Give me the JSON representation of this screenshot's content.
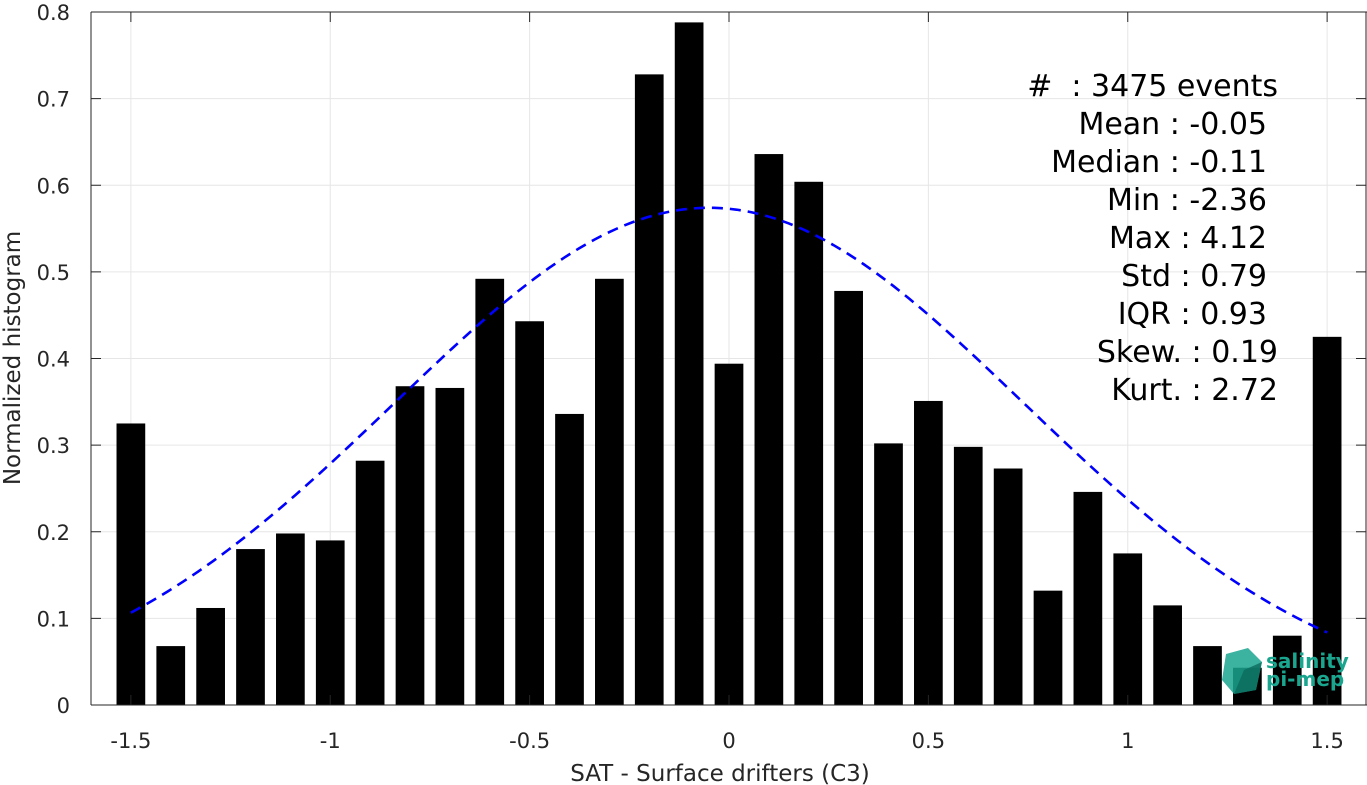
{
  "chart_data": {
    "type": "bar",
    "xlabel": "SAT - Surface drifters (C3)",
    "ylabel": "Normalized histogram",
    "xlim": [
      -1.6,
      1.6
    ],
    "ylim": [
      0,
      0.8
    ],
    "xticks": [
      -1.5,
      -1,
      -0.5,
      0,
      0.5,
      1,
      1.5
    ],
    "xtick_labels": [
      "-1.5",
      "-1",
      "-0.5",
      "0",
      "0.5",
      "1",
      "1.5"
    ],
    "yticks": [
      0,
      0.1,
      0.2,
      0.3,
      0.4,
      0.5,
      0.6,
      0.7,
      0.8
    ],
    "ytick_labels": [
      "0",
      "0.1",
      "0.2",
      "0.3",
      "0.4",
      "0.5",
      "0.6",
      "0.7",
      "0.8"
    ],
    "grid": true,
    "bar_color": "#000000",
    "curve_color": "#0000ff",
    "bin_width": 0.1,
    "bars": {
      "x": [
        -1.5,
        -1.4,
        -1.3,
        -1.2,
        -1.1,
        -1.0,
        -0.9,
        -0.8,
        -0.7,
        -0.6,
        -0.5,
        -0.4,
        -0.3,
        -0.2,
        -0.1,
        0.0,
        0.1,
        0.2,
        0.3,
        0.4,
        0.5,
        0.6,
        0.7,
        0.8,
        0.9,
        1.0,
        1.1,
        1.2,
        1.3,
        1.4,
        1.5
      ],
      "values": [
        0.325,
        0.068,
        0.112,
        0.18,
        0.198,
        0.19,
        0.282,
        0.368,
        0.366,
        0.492,
        0.443,
        0.336,
        0.492,
        0.728,
        0.788,
        0.394,
        0.636,
        0.604,
        0.478,
        0.302,
        0.351,
        0.298,
        0.273,
        0.132,
        0.246,
        0.175,
        0.115,
        0.068,
        0.043,
        0.08,
        0.425
      ]
    },
    "fit_curve": {
      "style": "dashed",
      "mean": -0.05,
      "std": 0.79,
      "peak": 0.574,
      "x_range": [
        -1.5,
        1.5
      ]
    },
    "stats_lines": [
      "#  : 3475 events",
      "Mean : -0.05",
      "Median : -0.11",
      "Min : -2.36",
      "Max : 4.12",
      "Std : 0.79",
      "IQR : 0.93",
      "Skew. : 0.19",
      "Kurt. : 2.72"
    ],
    "logo": {
      "line1": "salinity",
      "line2": "pi-mep",
      "color": "#1aa58f"
    }
  }
}
